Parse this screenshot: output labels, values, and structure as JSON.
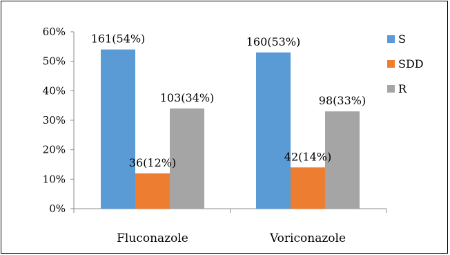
{
  "chart_data": {
    "type": "bar",
    "categories": [
      "Fluconazole",
      "Voriconazole"
    ],
    "series": [
      {
        "name": "S",
        "color": "#5b9bd5",
        "values": [
          54,
          53
        ],
        "labels": [
          "161(54%)",
          "160(53%)"
        ]
      },
      {
        "name": "SDD",
        "color": "#ed7d31",
        "values": [
          12,
          14
        ],
        "labels": [
          "36(12%)",
          "42(14%)"
        ]
      },
      {
        "name": "R",
        "color": "#a5a5a5",
        "values": [
          34,
          33
        ],
        "labels": [
          "103(34%)",
          "98(33%)"
        ]
      }
    ],
    "ylim": [
      0,
      60
    ],
    "yticks": [
      0,
      10,
      20,
      30,
      40,
      50,
      60
    ],
    "ytick_labels": [
      "0%",
      "10%",
      "20%",
      "30%",
      "40%",
      "50%",
      "60%"
    ],
    "grid": false,
    "legend_position": "right"
  }
}
